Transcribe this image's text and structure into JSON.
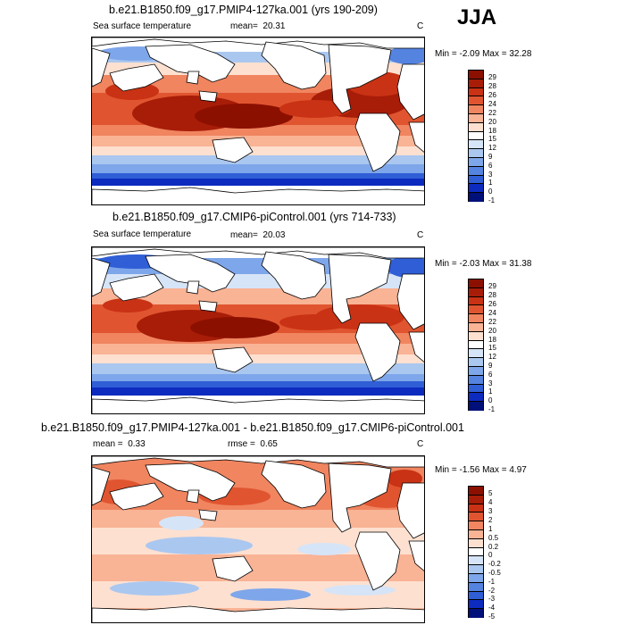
{
  "season": "JJA",
  "palette": {
    "ocean_warm": [
      "#fde0d0",
      "#f9b395",
      "#f08560",
      "#e05530",
      "#c93214",
      "#a81d08",
      "#8c1000"
    ],
    "ocean_cool": [
      "#ffffff",
      "#d6e4f7",
      "#aac7f0",
      "#7ea6ea",
      "#5583e0",
      "#2f5ed6",
      "#0d2bbf",
      "#00107a"
    ],
    "land": "#ffffff",
    "coast": "#000000"
  },
  "panels": [
    {
      "title": "b.e21.B1850.f09_g17.PMIP4-127ka.001 (yrs 190-209)",
      "variable": "Sea surface temperature",
      "stat_label": "mean=",
      "stat_value": "20.31",
      "units": "C",
      "minmax": "Min = -2.09 Max = 32.28",
      "colorbar": {
        "colors": [
          "#8c1000",
          "#a81d08",
          "#c93214",
          "#e05530",
          "#f08560",
          "#f9b395",
          "#fde0d0",
          "#ffffff",
          "#d6e4f7",
          "#aac7f0",
          "#7ea6ea",
          "#5583e0",
          "#2f5ed6",
          "#0d2bbf",
          "#00107a"
        ],
        "ticks": [
          "29",
          "28",
          "26",
          "24",
          "22",
          "20",
          "18",
          "15",
          "12",
          "9",
          "6",
          "3",
          "1",
          "0",
          "-1"
        ]
      }
    },
    {
      "title": "b.e21.B1850.f09_g17.CMIP6-piControl.001 (yrs 714-733)",
      "variable": "Sea surface temperature",
      "stat_label": "mean=",
      "stat_value": "20.03",
      "units": "C",
      "minmax": "Min = -2.03 Max = 31.38",
      "colorbar": {
        "colors": [
          "#8c1000",
          "#a81d08",
          "#c93214",
          "#e05530",
          "#f08560",
          "#f9b395",
          "#fde0d0",
          "#ffffff",
          "#d6e4f7",
          "#aac7f0",
          "#7ea6ea",
          "#5583e0",
          "#2f5ed6",
          "#0d2bbf",
          "#00107a"
        ],
        "ticks": [
          "29",
          "28",
          "26",
          "24",
          "22",
          "20",
          "18",
          "15",
          "12",
          "9",
          "6",
          "3",
          "1",
          "0",
          "-1"
        ]
      }
    },
    {
      "title": "b.e21.B1850.f09_g17.PMIP4-127ka.001 - b.e21.B1850.f09_g17.CMIP6-piControl.001",
      "stat_label": "mean =",
      "stat_value": "0.33",
      "stat2_label": "rmse =",
      "stat2_value": "0.65",
      "units": "C",
      "minmax": "Min = -1.56 Max = 4.97",
      "colorbar": {
        "colors": [
          "#8c1000",
          "#a81d08",
          "#c93214",
          "#e05530",
          "#f08560",
          "#f9b395",
          "#fde0d0",
          "#ffffff",
          "#d6e4f7",
          "#aac7f0",
          "#7ea6ea",
          "#5583e0",
          "#2f5ed6",
          "#0d2bbf",
          "#00107a"
        ],
        "ticks": [
          "5",
          "4",
          "3",
          "2",
          "1",
          "0.5",
          "0.2",
          "0",
          "-0.2",
          "-0.5",
          "-1",
          "-2",
          "-3",
          "-4",
          "-5"
        ]
      }
    }
  ]
}
